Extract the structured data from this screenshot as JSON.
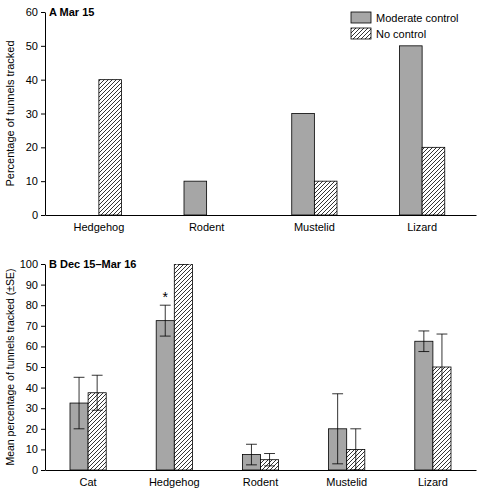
{
  "chart_data": [
    {
      "type": "bar",
      "title": "A Mar 15",
      "y_label": "Percentage of tunnels tracked",
      "categories": [
        "Hedgehog",
        "Rodent",
        "Mustelid",
        "Lizard"
      ],
      "series": [
        {
          "name": "Moderate control",
          "color": "#a6a6a6",
          "line_style": "solid",
          "values": [
            0,
            10,
            30,
            50
          ]
        },
        {
          "name": "No control",
          "color": "#000000",
          "line_style": "hatched",
          "values": [
            40,
            0,
            10,
            20
          ]
        }
      ],
      "ylim": [
        0,
        60
      ],
      "yticks": [
        0,
        10,
        20,
        30,
        40,
        50,
        60
      ],
      "grid": false,
      "legend": "top-right"
    },
    {
      "type": "bar",
      "title": "B Dec 15–Mar 16",
      "y_label": "Mean percentage of tunnels tracked (±SE)",
      "categories": [
        "Cat",
        "Hedgehog",
        "Rodent",
        "Mustelid",
        "Lizard"
      ],
      "series": [
        {
          "color": "#a6a6a6",
          "line_style": "solid",
          "values": [
            32.5,
            72.5,
            7.5,
            20,
            62.5
          ],
          "errors": [
            12.5,
            7.5,
            5,
            17,
            5
          ]
        },
        {
          "color": "#000000",
          "line_style": "hatched",
          "values": [
            37.5,
            100,
            5,
            10,
            50
          ],
          "errors": [
            8.5,
            0,
            3,
            10,
            16
          ]
        }
      ],
      "annotations": [
        {
          "text": "*",
          "category": 1,
          "series": 0
        }
      ],
      "ylim": [
        0,
        100
      ],
      "yticks": [
        0,
        10,
        20,
        30,
        40,
        50,
        60,
        70,
        80,
        90,
        100
      ],
      "grid": false
    }
  ]
}
